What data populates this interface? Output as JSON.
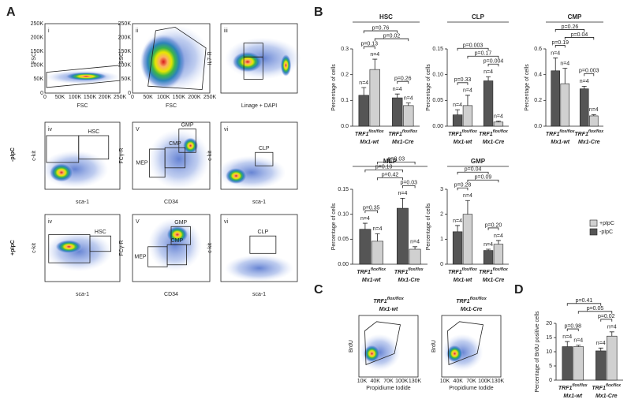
{
  "panel_labels": [
    "A",
    "B",
    "C",
    "D"
  ],
  "genotype": {
    "name": "TRF1",
    "sup": "flox/flox"
  },
  "flow": {
    "row_labels": [
      "-pIpC",
      "+pIpC"
    ],
    "linear_ticks": [
      "0",
      "50K",
      "100K",
      "150K",
      "200K",
      "250K"
    ],
    "plots": [
      {
        "numeral": "i",
        "xlabel": "FSC",
        "ylabel": "FSC",
        "gates": []
      },
      {
        "numeral": "ii",
        "xlabel": "FSC",
        "ylabel": "SSC",
        "gates": []
      },
      {
        "numeral": "iii",
        "xlabel": "Linage + DAPI",
        "ylabel": "IL7-R",
        "gates": []
      },
      {
        "numeral": "iv",
        "xlabel": "sca-1",
        "ylabel": "c-kit",
        "gates": [
          "HSC"
        ]
      },
      {
        "numeral": "V",
        "xlabel": "CD34",
        "ylabel": "FCγ-R",
        "gates": [
          "GMP",
          "CMP",
          "MEP"
        ]
      },
      {
        "numeral": "vi",
        "xlabel": "sca-1",
        "ylabel": "c-kit",
        "gates": [
          "CLP"
        ]
      },
      {
        "numeral": "iv",
        "xlabel": "sca-1",
        "ylabel": "c-kit",
        "gates": [
          "HSC"
        ]
      },
      {
        "numeral": "V",
        "xlabel": "CD34",
        "ylabel": "FCγ-R",
        "gates": [
          "GMP",
          "CMP",
          "MEP"
        ]
      },
      {
        "numeral": "vi",
        "xlabel": "sca-1",
        "ylabel": "c-kit",
        "gates": [
          "CLP"
        ]
      }
    ]
  },
  "brdu": {
    "xlabel": "Propidiume Iodide",
    "ylabel": "BrdU",
    "xticks": [
      "10K",
      "40K",
      "70K",
      "100K",
      "130K"
    ],
    "plots": [
      {
        "line": "Mx1-wt"
      },
      {
        "line": "Mx1-Cre"
      }
    ]
  },
  "chart_data": [
    {
      "type": "bar",
      "title": "HSC",
      "ylabel": "Percentage of cells",
      "categories": [
        "Mx1-wt",
        "Mx1-Cre"
      ],
      "ylim": [
        0,
        0.3
      ],
      "yticks": [
        {
          "value": 0,
          "label": "0.0"
        },
        0.1,
        0.2,
        0.3
      ],
      "series": [
        {
          "name": "-pIpC",
          "color": "#555555",
          "values": [
            0.12,
            0.11
          ],
          "errors": [
            0.03,
            0.015
          ]
        },
        {
          "name": "+pIpC",
          "color": "#d0d0d0",
          "values": [
            0.22,
            0.08
          ],
          "errors": [
            0.04,
            0.01
          ]
        }
      ],
      "n_labels": [
        "n=4",
        "n=4",
        "n=4",
        "n=4"
      ],
      "annotations": [
        {
          "label": "p=0.13",
          "bars": [
            0,
            1
          ]
        },
        {
          "label": "p=0.26",
          "bars": [
            2,
            3
          ]
        },
        {
          "label": "p=0.02",
          "bars": [
            1,
            3
          ]
        },
        {
          "label": "p=0.76",
          "bars": [
            0,
            2
          ]
        }
      ]
    },
    {
      "type": "bar",
      "title": "CLP",
      "ylabel": "Percentage of cells",
      "categories": [
        "Mx1-wt",
        "Mx1-Cre"
      ],
      "ylim": [
        0,
        0.15
      ],
      "yticks": [
        {
          "value": 0,
          "label": "0.00"
        },
        0.05,
        {
          "value": 0.1,
          "label": "0.10"
        },
        0.15
      ],
      "series": [
        {
          "name": "-pIpC",
          "color": "#555555",
          "values": [
            0.022,
            0.088
          ],
          "errors": [
            0.01,
            0.008
          ]
        },
        {
          "name": "+pIpC",
          "color": "#d0d0d0",
          "values": [
            0.04,
            0.008
          ],
          "errors": [
            0.02,
            0.002
          ]
        }
      ],
      "n_labels": [
        "n=4",
        "n=4",
        "n=4",
        "n=4"
      ],
      "annotations": [
        {
          "label": "p=0.33",
          "bars": [
            0,
            1
          ]
        },
        {
          "label": "p=0.004",
          "bars": [
            2,
            3
          ]
        },
        {
          "label": "p=0.17",
          "bars": [
            1,
            3
          ]
        },
        {
          "label": "p=0.003",
          "bars": [
            0,
            2
          ]
        }
      ]
    },
    {
      "type": "bar",
      "title": "CMP",
      "ylabel": "Percentage of cells",
      "categories": [
        "Mx1-wt",
        "Mx1-Cre"
      ],
      "ylim": [
        0,
        0.6
      ],
      "yticks": [
        {
          "value": 0,
          "label": "0.0"
        },
        0.2,
        0.4,
        0.6
      ],
      "series": [
        {
          "name": "-pIpC",
          "color": "#555555",
          "values": [
            0.43,
            0.29
          ],
          "errors": [
            0.1,
            0.02
          ]
        },
        {
          "name": "+pIpC",
          "color": "#d0d0d0",
          "values": [
            0.33,
            0.08
          ],
          "errors": [
            0.12,
            0.01
          ]
        }
      ],
      "n_labels": [
        "n=4",
        "n=4",
        "n=4",
        "n=4"
      ],
      "annotations": [
        {
          "label": "p=0.19",
          "bars": [
            0,
            1
          ]
        },
        {
          "label": "p=0.003",
          "bars": [
            2,
            3
          ]
        },
        {
          "label": "p=0.04",
          "bars": [
            1,
            3
          ]
        },
        {
          "label": "p=0.26",
          "bars": [
            0,
            2
          ]
        }
      ]
    },
    {
      "type": "bar",
      "title": "MEP",
      "ylabel": "Percentage of cells",
      "categories": [
        "Mx1-wt",
        "Mx1-Cre"
      ],
      "ylim": [
        0,
        0.15
      ],
      "yticks": [
        {
          "value": 0,
          "label": "0.00"
        },
        0.05,
        {
          "value": 0.1,
          "label": "0.10"
        },
        0.15
      ],
      "series": [
        {
          "name": "-pIpC",
          "color": "#555555",
          "values": [
            0.07,
            0.112
          ],
          "errors": [
            0.012,
            0.02
          ]
        },
        {
          "name": "+pIpC",
          "color": "#d0d0d0",
          "values": [
            0.046,
            0.03
          ],
          "errors": [
            0.015,
            0.005
          ]
        }
      ],
      "n_labels": [
        "n=4",
        "n=4",
        "n=4",
        "n=4"
      ],
      "annotations": [
        {
          "label": "p=0.35",
          "bars": [
            0,
            1
          ]
        },
        {
          "label": "p=0.03",
          "bars": [
            2,
            3
          ]
        },
        {
          "label": "p=0.42",
          "bars": [
            1,
            2
          ]
        },
        {
          "label": "p=0.10",
          "bars": [
            0,
            2
          ]
        },
        {
          "label": "p=0.03",
          "bars": [
            1,
            3
          ]
        }
      ]
    },
    {
      "type": "bar",
      "title": "GMP",
      "ylabel": "Percentage of cells",
      "categories": [
        "Mx1-wt",
        "Mx1-Cre"
      ],
      "ylim": [
        0,
        3
      ],
      "yticks": [
        0,
        1,
        2,
        3
      ],
      "series": [
        {
          "name": "-pIpC",
          "color": "#555555",
          "values": [
            1.3,
            0.55
          ],
          "errors": [
            0.25,
            0.05
          ]
        },
        {
          "name": "+pIpC",
          "color": "#d0d0d0",
          "values": [
            2.0,
            0.8
          ],
          "errors": [
            0.55,
            0.15
          ]
        }
      ],
      "n_labels": [
        "n=4",
        "n=4",
        "n=4",
        "n=4"
      ],
      "annotations": [
        {
          "label": "p=0.28",
          "bars": [
            0,
            1
          ]
        },
        {
          "label": "p=0.20",
          "bars": [
            2,
            3
          ]
        },
        {
          "label": "p=0.09",
          "bars": [
            1,
            3
          ]
        },
        {
          "label": "p=0.04",
          "bars": [
            0,
            2
          ]
        }
      ]
    },
    {
      "type": "bar",
      "ylabel": "Percentage of BrdU positive cells",
      "categories": [
        "Mx1-wt",
        "Mx1-Cre"
      ],
      "ylim": [
        0,
        20
      ],
      "yticks": [
        0,
        5,
        10,
        15,
        20
      ],
      "series": [
        {
          "name": "-pIpC",
          "color": "#555555",
          "values": [
            11.8,
            10.3
          ],
          "errors": [
            1.8,
            1.0
          ]
        },
        {
          "name": "+pIpC",
          "color": "#d0d0d0",
          "values": [
            11.8,
            15.5
          ],
          "errors": [
            0.5,
            1.5
          ]
        }
      ],
      "n_labels": [
        "n=4",
        "n=4",
        "n=4",
        "n=4"
      ],
      "annotations": [
        {
          "label": "p=0.98",
          "bars": [
            0,
            1
          ]
        },
        {
          "label": "p=0.02",
          "bars": [
            2,
            3
          ]
        },
        {
          "label": "p=0.05",
          "bars": [
            1,
            3
          ]
        },
        {
          "label": "p=0.41",
          "bars": [
            0,
            2
          ]
        }
      ]
    }
  ]
}
